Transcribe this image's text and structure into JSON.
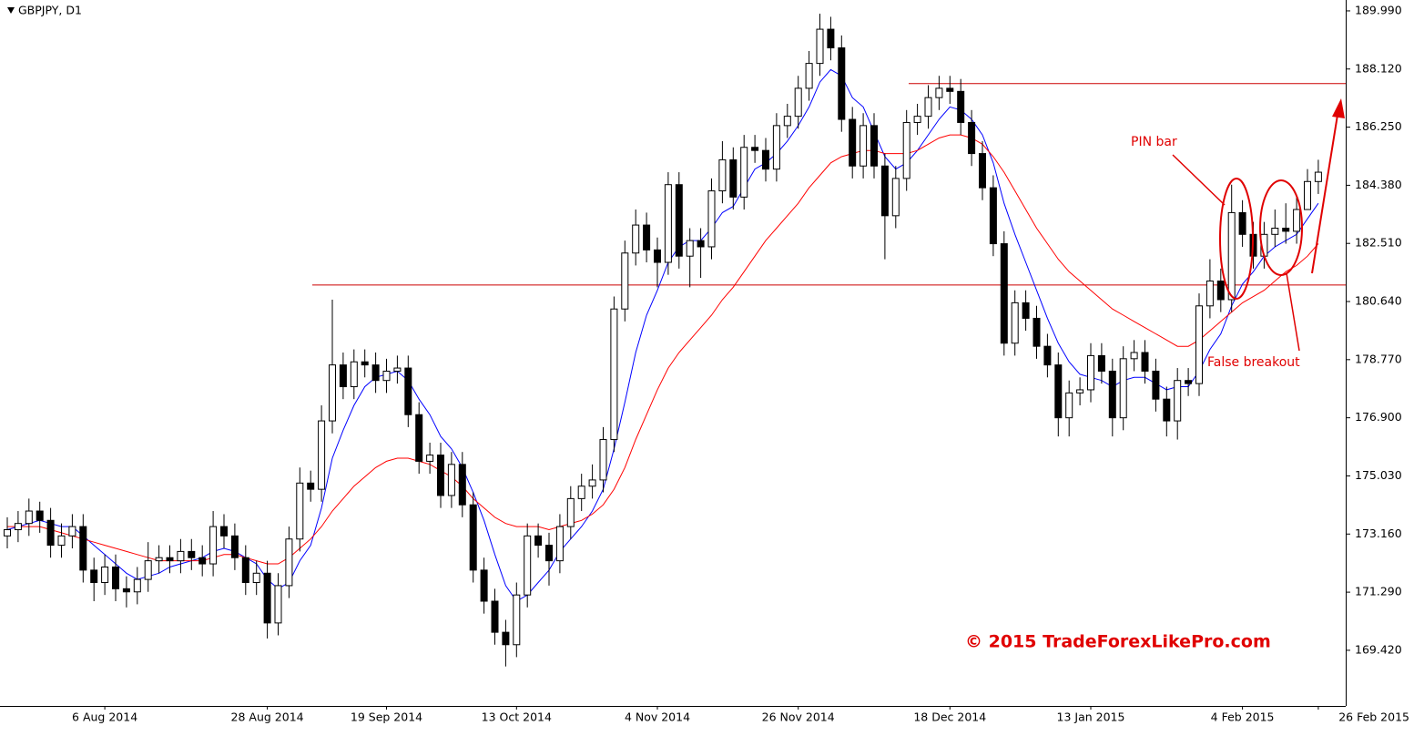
{
  "chart_data": {
    "type": "candlestick",
    "title": "GBPJPY, D1",
    "categories": [
      null,
      null,
      null,
      null,
      null,
      null,
      null,
      null,
      null,
      "6 Aug 2014",
      null,
      null,
      null,
      null,
      null,
      null,
      null,
      null,
      null,
      null,
      null,
      null,
      null,
      null,
      "28 Aug 2014",
      null,
      null,
      null,
      null,
      null,
      null,
      null,
      null,
      null,
      null,
      "19 Sep 2014",
      null,
      null,
      null,
      null,
      null,
      null,
      null,
      null,
      null,
      null,
      null,
      "13 Oct 2014",
      null,
      null,
      null,
      null,
      null,
      null,
      null,
      null,
      null,
      null,
      null,
      null,
      "4 Nov 2014",
      null,
      null,
      null,
      null,
      null,
      null,
      null,
      null,
      null,
      null,
      null,
      null,
      "26 Nov 2014",
      null,
      null,
      null,
      null,
      null,
      null,
      null,
      null,
      null,
      null,
      null,
      null,
      null,
      "18 Dec 2014",
      null,
      null,
      null,
      null,
      null,
      null,
      null,
      null,
      null,
      null,
      null,
      null,
      "13 Jan 2015",
      null,
      null,
      null,
      null,
      null,
      null,
      null,
      null,
      null,
      null,
      null,
      null,
      null,
      "4 Feb 2015",
      null,
      null,
      null,
      null,
      null,
      null,
      "26 Feb 2015"
    ],
    "open": [
      173.1,
      173.3,
      173.5,
      173.9,
      173.6,
      172.8,
      173.1,
      173.4,
      172.0,
      171.6,
      172.1,
      171.4,
      171.3,
      171.7,
      172.3,
      172.4,
      172.3,
      172.6,
      172.4,
      172.2,
      173.4,
      173.1,
      172.4,
      171.6,
      171.9,
      170.3,
      171.5,
      173.0,
      174.8,
      174.6,
      176.8,
      178.6,
      177.9,
      178.7,
      178.6,
      178.1,
      178.4,
      178.5,
      177.0,
      175.5,
      175.7,
      174.4,
      175.4,
      174.1,
      172.0,
      171.0,
      170.0,
      169.6,
      171.2,
      173.1,
      172.8,
      172.3,
      173.4,
      174.3,
      174.7,
      174.9,
      176.2,
      180.4,
      182.2,
      183.1,
      182.3,
      181.9,
      184.4,
      182.1,
      182.6,
      182.4,
      184.2,
      185.2,
      184.0,
      185.6,
      185.5,
      184.9,
      186.3,
      186.6,
      187.5,
      188.3,
      189.4,
      188.8,
      186.5,
      185.0,
      186.3,
      185.0,
      183.4,
      184.6,
      186.4,
      186.6,
      187.2,
      187.5,
      187.4,
      186.4,
      185.4,
      184.3,
      182.5,
      179.3,
      180.6,
      180.1,
      179.2,
      178.6,
      176.9,
      177.7,
      177.8,
      178.9,
      178.4,
      176.9,
      178.8,
      179.0,
      178.4,
      177.5,
      176.8,
      178.1,
      178.0,
      180.5,
      181.3,
      180.7,
      183.5,
      182.8,
      182.1,
      182.8,
      183.0,
      182.9,
      183.6,
      184.5
    ],
    "high": [
      173.7,
      173.9,
      174.3,
      174.2,
      174.0,
      173.5,
      173.8,
      173.8,
      172.4,
      172.5,
      172.5,
      171.8,
      172.1,
      172.9,
      172.8,
      172.8,
      173.0,
      173.0,
      172.8,
      173.9,
      173.8,
      173.5,
      172.8,
      172.3,
      172.3,
      171.9,
      173.4,
      175.3,
      175.2,
      177.3,
      180.7,
      179.0,
      179.1,
      179.1,
      179.0,
      178.8,
      178.9,
      178.9,
      177.4,
      176.1,
      176.1,
      175.8,
      175.8,
      174.5,
      172.4,
      171.4,
      170.4,
      171.6,
      173.5,
      173.5,
      173.2,
      173.8,
      174.7,
      175.1,
      175.4,
      176.6,
      180.8,
      182.6,
      183.6,
      183.5,
      182.7,
      184.8,
      184.8,
      183.0,
      183.0,
      184.6,
      185.8,
      185.6,
      186.0,
      186.0,
      185.9,
      186.7,
      187.0,
      187.9,
      188.7,
      189.9,
      189.8,
      189.2,
      186.9,
      186.7,
      186.7,
      185.4,
      185.0,
      186.8,
      187.0,
      187.6,
      187.9,
      187.9,
      187.8,
      186.8,
      185.8,
      184.7,
      182.9,
      181.0,
      181.0,
      180.5,
      179.6,
      179.0,
      178.1,
      178.2,
      179.3,
      179.3,
      178.8,
      179.2,
      179.4,
      179.4,
      178.8,
      177.9,
      178.5,
      178.5,
      180.9,
      182.0,
      181.7,
      184.4,
      183.9,
      183.2,
      183.2,
      183.6,
      183.8,
      184.0,
      184.9,
      185.2
    ],
    "low": [
      172.7,
      172.9,
      173.1,
      173.2,
      172.4,
      172.4,
      172.7,
      171.6,
      171.0,
      171.2,
      171.0,
      170.8,
      170.9,
      171.3,
      171.9,
      171.9,
      171.9,
      172.0,
      171.8,
      171.8,
      172.7,
      172.0,
      171.2,
      171.2,
      169.8,
      169.9,
      171.1,
      172.6,
      174.2,
      174.2,
      176.4,
      177.5,
      177.5,
      178.2,
      177.7,
      177.7,
      178.0,
      176.6,
      175.1,
      175.1,
      174.0,
      174.0,
      173.7,
      171.6,
      170.6,
      169.6,
      168.9,
      169.2,
      170.8,
      172.4,
      171.5,
      171.9,
      173.0,
      173.9,
      174.3,
      174.5,
      175.8,
      180.0,
      181.8,
      181.9,
      181.1,
      181.5,
      181.7,
      181.1,
      181.4,
      182.0,
      183.8,
      183.6,
      183.6,
      185.1,
      184.5,
      184.5,
      185.9,
      186.2,
      187.1,
      187.9,
      188.4,
      186.1,
      184.6,
      184.6,
      184.6,
      182.0,
      183.0,
      184.2,
      186.0,
      186.2,
      186.8,
      187.0,
      186.0,
      185.0,
      183.9,
      182.1,
      178.9,
      178.9,
      179.7,
      178.8,
      178.2,
      176.3,
      176.3,
      177.3,
      177.4,
      178.0,
      176.3,
      176.5,
      178.4,
      178.0,
      177.1,
      176.3,
      176.2,
      177.6,
      177.6,
      180.1,
      180.3,
      180.3,
      182.4,
      181.7,
      181.7,
      182.4,
      182.5,
      182.5,
      183.6,
      184.1
    ],
    "close": [
      173.3,
      173.5,
      173.9,
      173.6,
      172.8,
      173.1,
      173.4,
      172.0,
      171.6,
      172.1,
      171.4,
      171.3,
      171.7,
      172.3,
      172.4,
      172.3,
      172.6,
      172.4,
      172.2,
      173.4,
      173.1,
      172.4,
      171.6,
      171.9,
      170.3,
      171.5,
      173.0,
      174.8,
      174.6,
      176.8,
      178.6,
      177.9,
      178.7,
      178.6,
      178.1,
      178.4,
      178.5,
      177.0,
      175.5,
      175.7,
      174.4,
      175.4,
      174.1,
      172.0,
      171.0,
      170.0,
      169.6,
      171.2,
      173.1,
      172.8,
      172.3,
      173.4,
      174.3,
      174.7,
      174.9,
      176.2,
      180.4,
      182.2,
      183.1,
      182.3,
      181.9,
      184.4,
      182.1,
      182.6,
      182.4,
      184.2,
      185.2,
      184.0,
      185.6,
      185.5,
      184.9,
      186.3,
      186.6,
      187.5,
      188.3,
      189.4,
      188.8,
      186.5,
      185.0,
      186.3,
      185.0,
      183.4,
      184.6,
      186.4,
      186.6,
      187.2,
      187.5,
      187.4,
      186.4,
      185.4,
      184.3,
      182.5,
      179.3,
      180.6,
      180.1,
      179.2,
      178.6,
      176.9,
      177.7,
      177.8,
      178.9,
      178.4,
      176.9,
      178.8,
      179.0,
      178.4,
      177.5,
      176.8,
      178.1,
      178.0,
      180.5,
      181.3,
      180.7,
      183.5,
      182.8,
      182.1,
      182.8,
      183.0,
      182.9,
      183.6,
      184.5,
      184.8
    ],
    "up_color": "#ffffff",
    "down_color": "#000000",
    "series": [
      {
        "color": "#0000ff",
        "values": [
          173.3,
          173.4,
          173.5,
          173.6,
          173.5,
          173.4,
          173.4,
          173.1,
          172.8,
          172.5,
          172.2,
          171.9,
          171.7,
          171.8,
          171.9,
          172.1,
          172.2,
          172.3,
          172.4,
          172.6,
          172.7,
          172.6,
          172.4,
          172.2,
          171.7,
          171.4,
          171.6,
          172.3,
          172.8,
          174.0,
          175.6,
          176.5,
          177.3,
          177.9,
          178.2,
          178.3,
          178.4,
          178.1,
          177.5,
          177.0,
          176.3,
          175.9,
          175.3,
          174.5,
          173.6,
          172.5,
          171.5,
          171.0,
          171.2,
          171.6,
          172.0,
          172.6,
          173.0,
          173.4,
          173.9,
          174.6,
          175.9,
          177.4,
          179.0,
          180.2,
          181.0,
          181.9,
          182.4,
          182.6,
          182.6,
          183.0,
          183.5,
          183.7,
          184.3,
          184.9,
          185.1,
          185.4,
          185.8,
          186.3,
          186.9,
          187.7,
          188.1,
          187.9,
          187.2,
          186.9,
          186.1,
          185.3,
          184.9,
          185.1,
          185.5,
          186.0,
          186.5,
          186.9,
          186.8,
          186.5,
          186.0,
          185.1,
          183.8,
          182.8,
          181.9,
          181.0,
          180.1,
          179.3,
          178.7,
          178.3,
          178.2,
          178.1,
          177.9,
          178.1,
          178.2,
          178.2,
          178.0,
          177.8,
          177.9,
          177.9,
          178.4,
          179.1,
          179.6,
          180.5,
          181.2,
          181.6,
          182.1,
          182.4,
          182.6,
          182.8,
          183.3,
          183.8
        ]
      },
      {
        "color": "#ff0000",
        "values": [
          173.4,
          173.4,
          173.4,
          173.4,
          173.3,
          173.2,
          173.1,
          173.0,
          172.9,
          172.8,
          172.7,
          172.6,
          172.5,
          172.4,
          172.3,
          172.3,
          172.3,
          172.3,
          172.3,
          172.4,
          172.5,
          172.5,
          172.4,
          172.3,
          172.2,
          172.2,
          172.4,
          172.7,
          173.0,
          173.4,
          173.9,
          174.3,
          174.7,
          175.0,
          175.3,
          175.5,
          175.6,
          175.6,
          175.5,
          175.4,
          175.2,
          175.0,
          174.7,
          174.3,
          174.0,
          173.7,
          173.5,
          173.4,
          173.4,
          173.4,
          173.3,
          173.4,
          173.5,
          173.6,
          173.8,
          174.1,
          174.6,
          175.3,
          176.2,
          177.0,
          177.8,
          178.5,
          179.0,
          179.4,
          179.8,
          180.2,
          180.7,
          181.1,
          181.6,
          182.1,
          182.6,
          183.0,
          183.4,
          183.8,
          184.3,
          184.7,
          185.1,
          185.3,
          185.4,
          185.5,
          185.5,
          185.4,
          185.4,
          185.4,
          185.5,
          185.7,
          185.9,
          186.0,
          186.0,
          185.9,
          185.7,
          185.3,
          184.8,
          184.2,
          183.6,
          183.0,
          182.5,
          182.0,
          181.6,
          181.3,
          181.0,
          180.7,
          180.4,
          180.2,
          180.0,
          179.8,
          179.6,
          179.4,
          179.2,
          179.2,
          179.4,
          179.7,
          180.0,
          180.3,
          180.6,
          180.8,
          181.0,
          181.3,
          181.6,
          181.8,
          182.1,
          182.5
        ]
      }
    ],
    "levels": [
      {
        "value": 181.17,
        "color": "#cc0000"
      },
      {
        "value": 187.65,
        "color": "#cc0000"
      }
    ],
    "ylim": [
      167.63,
      190.34
    ],
    "yticks": [
      {
        "value": 189.99,
        "label": "189.990"
      },
      {
        "value": 188.12,
        "label": "188.120"
      },
      {
        "value": 186.25,
        "label": "186.250"
      },
      {
        "value": 184.38,
        "label": "184.380"
      },
      {
        "value": 182.51,
        "label": "182.510"
      },
      {
        "value": 180.64,
        "label": "180.640"
      },
      {
        "value": 178.77,
        "label": "178.770"
      },
      {
        "value": 176.9,
        "label": "176.900"
      },
      {
        "value": 175.03,
        "label": "175.030"
      },
      {
        "value": 173.16,
        "label": "173.160"
      },
      {
        "value": 171.29,
        "label": "171.290"
      },
      {
        "value": 169.42,
        "label": "169.420"
      }
    ],
    "annotations": [
      "PIN bar",
      "False breakout",
      "© 2015 TradeForexLikePro.com"
    ]
  }
}
